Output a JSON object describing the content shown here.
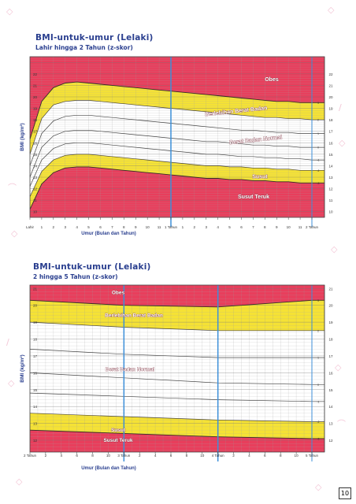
{
  "charts": [
    {
      "title": "BMI-untuk-umur (Lelaki)",
      "subtitle": "Lahir hingga 2 Tahun (z-skor)",
      "ylabel": "BMI (kg/m²)",
      "xlabel": "Umur (Bulan dan Tahun)"
    },
    {
      "title": "BMI-untuk-umur (Lelaki)",
      "subtitle": "2 hingga 5 Tahun (z-skor)",
      "ylabel": "BMI (kg/m²)",
      "xlabel": "Umur (Bulan dan Tahun)"
    }
  ],
  "page_number": "10",
  "colors": {
    "red": "#e83e5c",
    "yellow": "#f5e235",
    "blue": "#3c8fd9",
    "title": "#2a3f8f"
  },
  "chart_data": [
    {
      "type": "area",
      "title": "BMI-untuk-umur (Lelaki)",
      "subtitle": "Lahir hingga 2 Tahun (z-skor)",
      "xlabel": "Umur (Bulan dan Tahun)",
      "ylabel": "BMI (kg/m²)",
      "ylim": [
        9.5,
        23.5
      ],
      "yticks": [
        10,
        11,
        12,
        13,
        14,
        15,
        16,
        17,
        18,
        19,
        20,
        21,
        22
      ],
      "x_months": [
        0,
        1,
        2,
        3,
        4,
        5,
        6,
        7,
        8,
        9,
        10,
        11,
        12,
        13,
        14,
        15,
        16,
        17,
        18,
        19,
        20,
        21,
        22,
        23,
        24
      ],
      "xtick_labels": [
        "Lahir",
        "1",
        "2",
        "3",
        "4",
        "5",
        "6",
        "7",
        "8",
        "9",
        "10",
        "11",
        "1 Tahun",
        "1",
        "2",
        "3",
        "4",
        "5",
        "6",
        "7",
        "8",
        "9",
        "10",
        "11",
        "2 Tahun"
      ],
      "right_labels": [
        "3",
        "2",
        "1",
        "0",
        "-1",
        "-2",
        "-3"
      ],
      "zones": [
        "Obes",
        "Berlebihan Berat Badan",
        "Berat Badan Normal",
        "Susut",
        "Susut Teruk"
      ],
      "series": [
        {
          "name": "3",
          "values": [
            16.3,
            19.6,
            20.8,
            21.2,
            21.3,
            21.2,
            21.1,
            21.0,
            20.9,
            20.8,
            20.7,
            20.6,
            20.5,
            20.4,
            20.3,
            20.2,
            20.1,
            20.0,
            19.9,
            19.8,
            19.7,
            19.6,
            19.6,
            19.5,
            19.5
          ]
        },
        {
          "name": "2",
          "values": [
            15.0,
            18.1,
            19.3,
            19.6,
            19.7,
            19.7,
            19.6,
            19.5,
            19.4,
            19.3,
            19.2,
            19.1,
            19.0,
            18.9,
            18.8,
            18.7,
            18.6,
            18.5,
            18.4,
            18.3,
            18.2,
            18.2,
            18.1,
            18.1,
            18.0
          ]
        },
        {
          "name": "1",
          "values": [
            14.0,
            16.8,
            17.9,
            18.3,
            18.4,
            18.4,
            18.3,
            18.2,
            18.1,
            18.0,
            17.9,
            17.8,
            17.7,
            17.6,
            17.5,
            17.4,
            17.3,
            17.2,
            17.1,
            17.1,
            17.0,
            16.9,
            16.9,
            16.8,
            16.8
          ]
        },
        {
          "name": "0",
          "values": [
            13.0,
            15.6,
            16.6,
            17.0,
            17.1,
            17.1,
            17.0,
            16.9,
            16.8,
            16.7,
            16.6,
            16.5,
            16.4,
            16.3,
            16.2,
            16.1,
            16.1,
            16.0,
            15.9,
            15.8,
            15.8,
            15.7,
            15.7,
            15.6,
            15.6
          ]
        },
        {
          "name": "-1",
          "values": [
            12.2,
            14.5,
            15.5,
            15.9,
            16.0,
            16.0,
            15.9,
            15.8,
            15.7,
            15.6,
            15.5,
            15.4,
            15.3,
            15.2,
            15.1,
            15.0,
            15.0,
            14.9,
            14.8,
            14.8,
            14.7,
            14.7,
            14.6,
            14.6,
            14.5
          ]
        },
        {
          "name": "-2",
          "values": [
            11.3,
            13.5,
            14.5,
            14.9,
            15.0,
            15.0,
            14.9,
            14.8,
            14.7,
            14.6,
            14.5,
            14.4,
            14.3,
            14.2,
            14.1,
            14.0,
            14.0,
            13.9,
            13.9,
            13.8,
            13.8,
            13.7,
            13.7,
            13.6,
            13.6
          ]
        },
        {
          "name": "-3",
          "values": [
            10.2,
            12.4,
            13.4,
            13.8,
            13.9,
            13.9,
            13.8,
            13.7,
            13.6,
            13.5,
            13.4,
            13.3,
            13.2,
            13.1,
            13.0,
            12.9,
            12.9,
            12.8,
            12.8,
            12.7,
            12.7,
            12.6,
            12.6,
            12.5,
            12.5
          ]
        }
      ]
    },
    {
      "type": "area",
      "title": "BMI-untuk-umur (Lelaki)",
      "subtitle": "2 hingga 5 Tahun (z-skor)",
      "xlabel": "Umur (Bulan dan Tahun)",
      "ylabel": "BMI (kg/m²)",
      "ylim": [
        11.3,
        21.2
      ],
      "yticks": [
        12,
        13,
        14,
        15,
        16,
        17,
        18,
        19,
        20,
        21
      ],
      "x_months": [
        24,
        36,
        48,
        60
      ],
      "xtick_labels": [
        "2 Tahun",
        "2",
        "4",
        "6",
        "8",
        "10",
        "3 Tahun",
        "2",
        "4",
        "6",
        "8",
        "10",
        "4 Tahun",
        "2",
        "4",
        "6",
        "8",
        "10",
        "5 Tahun"
      ],
      "right_labels": [
        "3",
        "2",
        "1",
        "0",
        "-1",
        "-2",
        "-3"
      ],
      "zones": [
        "Obes",
        "Berlebihan Berat Badan",
        "Berat Badan Normal",
        "Susut",
        "Susut Teruk"
      ],
      "series": [
        {
          "name": "3",
          "values": [
            20.3,
            20.0,
            19.9,
            20.3
          ]
        },
        {
          "name": "2",
          "values": [
            19.0,
            18.7,
            18.5,
            18.5
          ]
        },
        {
          "name": "1",
          "values": [
            17.4,
            17.1,
            16.9,
            16.9
          ]
        },
        {
          "name": "0",
          "values": [
            16.0,
            15.7,
            15.4,
            15.3
          ]
        },
        {
          "name": "-1",
          "values": [
            14.8,
            14.6,
            14.4,
            14.3
          ]
        },
        {
          "name": "-2",
          "values": [
            13.6,
            13.4,
            13.2,
            13.1
          ]
        },
        {
          "name": "-3",
          "values": [
            12.6,
            12.4,
            12.2,
            12.1
          ]
        }
      ]
    }
  ]
}
